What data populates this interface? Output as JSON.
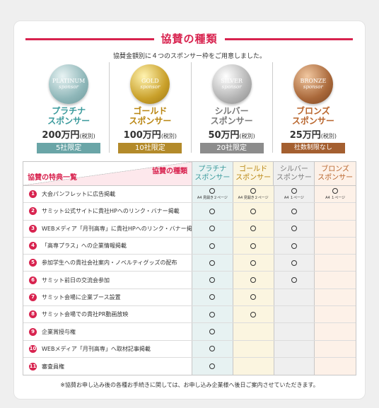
{
  "title": "協賛の種類",
  "subtitle": "協賛金額別に４つのスポンサー枠をご用意しました。",
  "tiers": [
    {
      "medal_name": "PLATINUM",
      "medal_sub": "sponsor",
      "name_line1": "プラチナ",
      "name_line2": "スポンサー",
      "price": "200万円",
      "tax": "(税別)",
      "limit": "5社限定",
      "color": "#3a9a9c"
    },
    {
      "medal_name": "GOLD",
      "medal_sub": "sponsor",
      "name_line1": "ゴールド",
      "name_line2": "スポンサー",
      "price": "100万円",
      "tax": "(税別)",
      "limit": "10社限定",
      "color": "#b9850f"
    },
    {
      "medal_name": "SILVER",
      "medal_sub": "sponsor",
      "name_line1": "シルバー",
      "name_line2": "スポンサー",
      "price": "50万円",
      "tax": "(税別)",
      "limit": "20社限定",
      "color": "#7a7a7a"
    },
    {
      "medal_name": "BRONZE",
      "medal_sub": "sponsor",
      "name_line1": "ブロンズ",
      "name_line2": "スポンサー",
      "price": "25万円",
      "tax": "(税別)",
      "limit": "社数制限なし",
      "color": "#b9652c"
    }
  ],
  "table": {
    "corner_top": "協賛の種類",
    "corner_bottom": "協賛の特典一覧",
    "headers": [
      {
        "line1": "プラチナ",
        "line2": "スポンサー"
      },
      {
        "line1": "ゴールド",
        "line2": "スポンサー"
      },
      {
        "line1": "シルバー",
        "line2": "スポンサー"
      },
      {
        "line1": "ブロンズ",
        "line2": "スポンサー"
      }
    ],
    "rows": [
      {
        "num": "1",
        "label": "大会パンフレットに広告掲載",
        "marks": [
          true,
          true,
          true,
          true
        ],
        "notes": [
          "A4 見開き２ページ",
          "A4 見開き２ページ",
          "A4 １ページ",
          "A4 １ページ"
        ]
      },
      {
        "num": "2",
        "label": "サミット公式サイトに貴社HPへのリンク・バナー掲載",
        "marks": [
          true,
          true,
          true,
          false
        ]
      },
      {
        "num": "3",
        "label": "WEBメディア「月刊高専」に貴社HPへのリンク・バナー掲載",
        "marks": [
          true,
          true,
          true,
          false
        ]
      },
      {
        "num": "4",
        "label": "「高専プラス」への企業情報掲載",
        "marks": [
          true,
          true,
          true,
          false
        ]
      },
      {
        "num": "5",
        "label": "参加学生への貴社会社案内・ノベルティグッズの配布",
        "marks": [
          true,
          true,
          true,
          false
        ]
      },
      {
        "num": "6",
        "label": "サミット前日の交流会参加",
        "marks": [
          true,
          true,
          true,
          false
        ]
      },
      {
        "num": "7",
        "label": "サミット会場に企業ブース設置",
        "marks": [
          true,
          true,
          false,
          false
        ]
      },
      {
        "num": "8",
        "label": "サミット会場での貴社PR動画放映",
        "marks": [
          true,
          true,
          false,
          false
        ]
      },
      {
        "num": "9",
        "label": "企業賞授与権",
        "marks": [
          true,
          false,
          false,
          false
        ]
      },
      {
        "num": "10",
        "label": "WEBメディア「月刊高専」へ取材記事掲載",
        "marks": [
          true,
          false,
          false,
          false
        ]
      },
      {
        "num": "11",
        "label": "審査員権",
        "marks": [
          true,
          false,
          false,
          false
        ]
      }
    ]
  },
  "footnote": "※協賛お申し込み後の各種お手続きに関しては、お申し込み企業様へ後日ご案内させていただきます。"
}
